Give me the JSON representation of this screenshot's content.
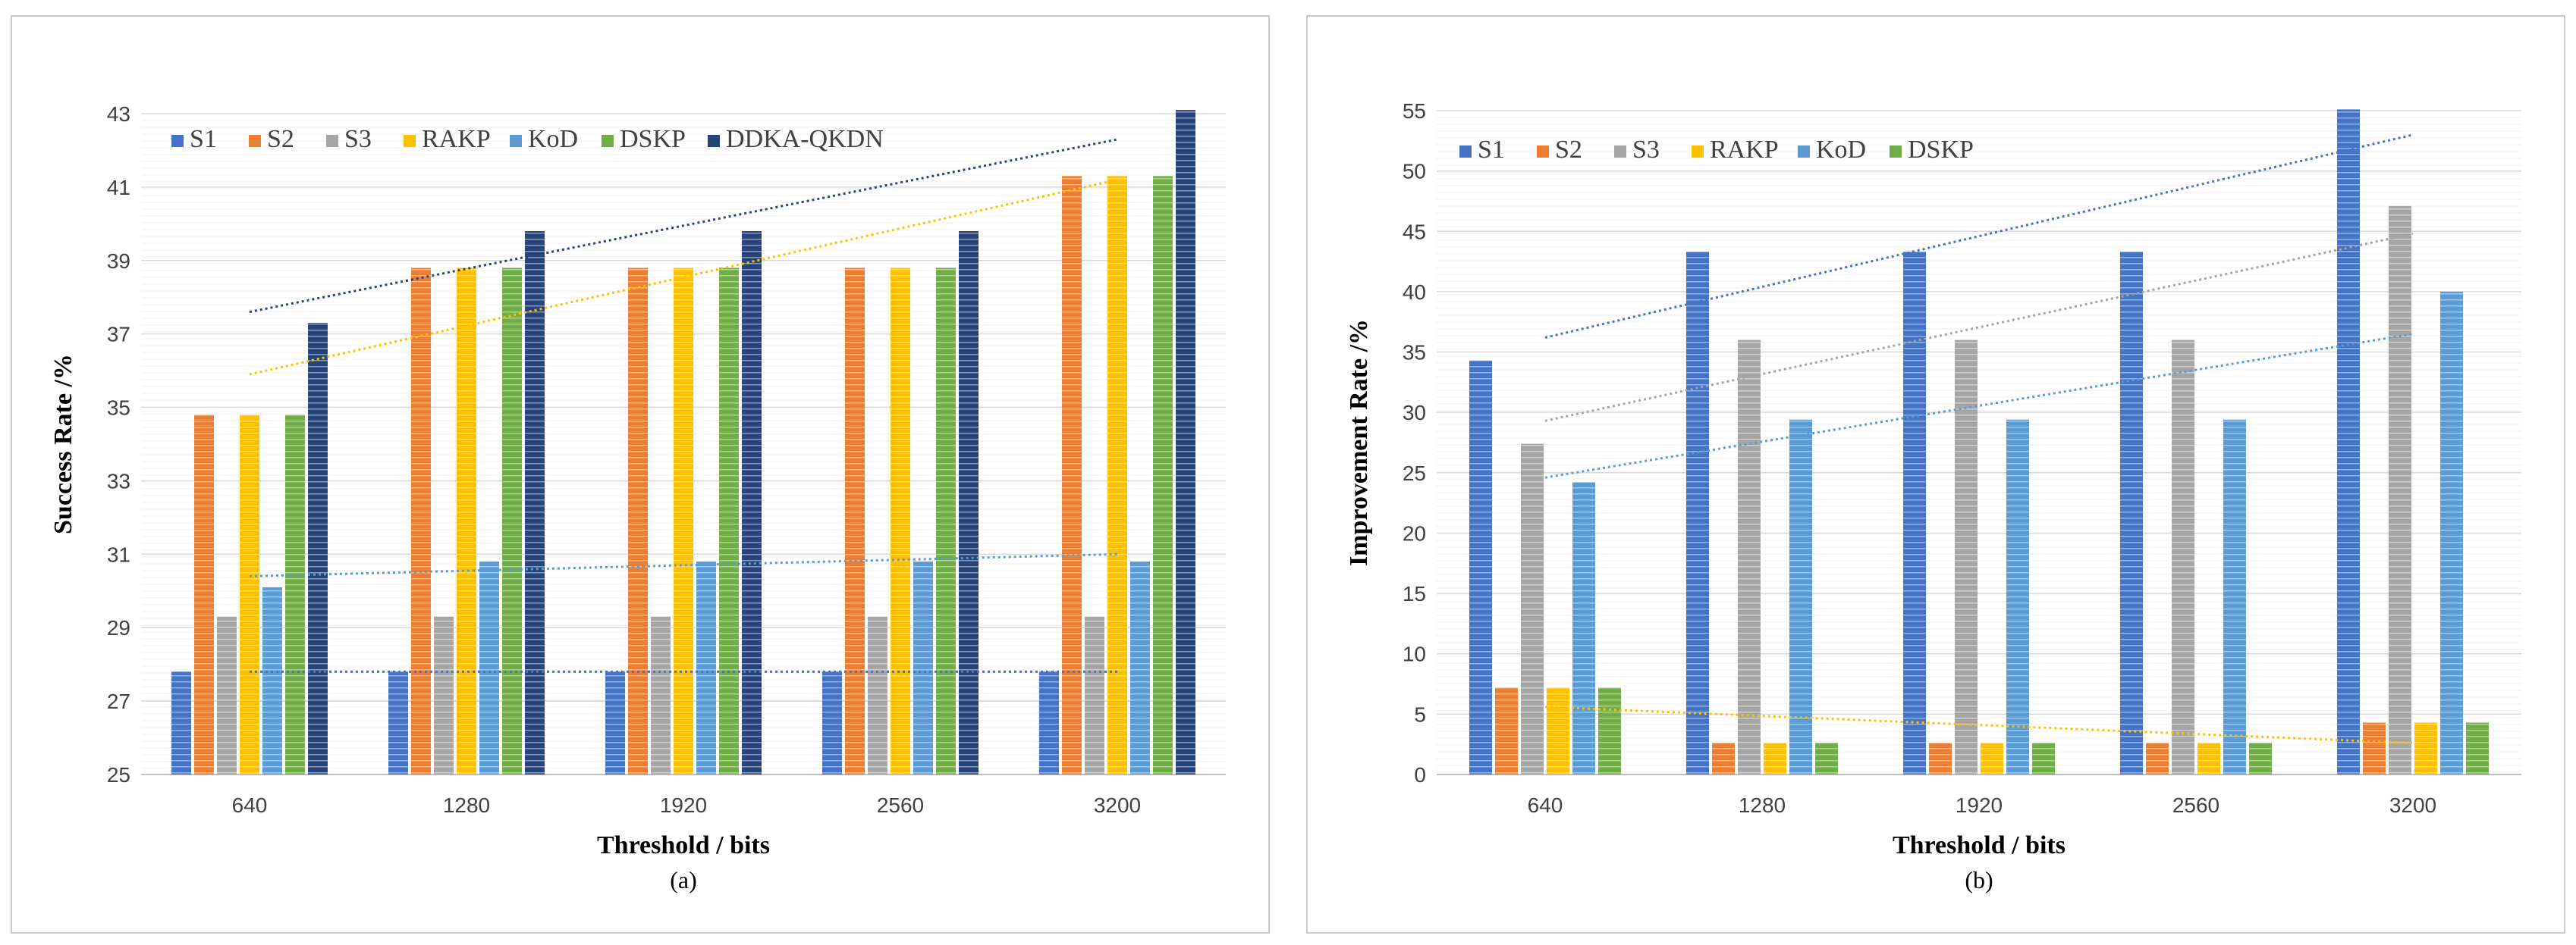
{
  "colors": {
    "S1": "#4472c4",
    "S2": "#ed7d31",
    "S3": "#a5a5a5",
    "RAKP": "#ffc000",
    "KoD": "#5b9bd5",
    "DSKP": "#70ad47",
    "DDKA-QKDN": "#264478"
  },
  "chart_data": [
    {
      "id": "a",
      "type": "bar",
      "caption": "(a)",
      "xlabel": "Threshold / bits",
      "ylabel": "Success Rate /%",
      "ylim": [
        25,
        43
      ],
      "yticks": [
        "25",
        "27",
        "29",
        "31",
        "33",
        "35",
        "37",
        "39",
        "41",
        "43"
      ],
      "categories": [
        "640",
        "1280",
        "1920",
        "2560",
        "3200"
      ],
      "legend_position": "top-left",
      "series": [
        {
          "name": "S1",
          "values": [
            27.8,
            27.8,
            27.8,
            27.8,
            27.8
          ]
        },
        {
          "name": "S2",
          "values": [
            34.8,
            38.8,
            38.8,
            38.8,
            41.3
          ]
        },
        {
          "name": "S3",
          "values": [
            29.3,
            29.3,
            29.3,
            29.3,
            29.3
          ]
        },
        {
          "name": "RAKP",
          "values": [
            34.8,
            38.8,
            38.8,
            38.8,
            41.3
          ]
        },
        {
          "name": "KoD",
          "values": [
            30.1,
            30.8,
            30.8,
            30.8,
            30.8
          ]
        },
        {
          "name": "DSKP",
          "values": [
            34.8,
            38.8,
            38.8,
            38.8,
            41.3
          ]
        },
        {
          "name": "DDKA-QKDN",
          "values": [
            37.3,
            39.8,
            39.8,
            39.8,
            43.1
          ]
        }
      ],
      "trendlines": [
        {
          "series": "DDKA-QKDN",
          "from": 37.6,
          "to": 42.3
        },
        {
          "series": "RAKP",
          "from": 35.9,
          "to": 41.2
        },
        {
          "series": "KoD",
          "from": 30.4,
          "to": 31.0
        },
        {
          "series": "S1",
          "from": 27.8,
          "to": 27.8
        }
      ]
    },
    {
      "id": "b",
      "type": "bar",
      "caption": "(b)",
      "xlabel": "Threshold / bits",
      "ylabel": "Improvement Rate /%",
      "ylim": [
        0,
        55
      ],
      "yticks": [
        "0",
        "5",
        "10",
        "15",
        "20",
        "25",
        "30",
        "35",
        "40",
        "45",
        "50",
        "55"
      ],
      "categories": [
        "640",
        "1280",
        "1920",
        "2560",
        "3200"
      ],
      "legend_position": "top-left",
      "series": [
        {
          "name": "S1",
          "values": [
            34.3,
            43.3,
            43.3,
            43.3,
            55.1
          ]
        },
        {
          "name": "S2",
          "values": [
            7.2,
            2.6,
            2.6,
            2.6,
            4.3
          ]
        },
        {
          "name": "S3",
          "values": [
            27.4,
            36.0,
            36.0,
            36.0,
            47.1
          ]
        },
        {
          "name": "RAKP",
          "values": [
            7.2,
            2.6,
            2.6,
            2.6,
            4.3
          ]
        },
        {
          "name": "KoD",
          "values": [
            24.2,
            29.4,
            29.4,
            29.4,
            40.0
          ]
        },
        {
          "name": "DSKP",
          "values": [
            7.2,
            2.6,
            2.6,
            2.6,
            4.3
          ]
        }
      ],
      "trendlines": [
        {
          "series": "S1",
          "from": 36.2,
          "to": 53.0
        },
        {
          "series": "S3",
          "from": 29.3,
          "to": 44.8
        },
        {
          "series": "KoD",
          "from": 24.6,
          "to": 36.5
        },
        {
          "series": "RAKP",
          "from": 5.6,
          "to": 2.6
        }
      ]
    }
  ]
}
